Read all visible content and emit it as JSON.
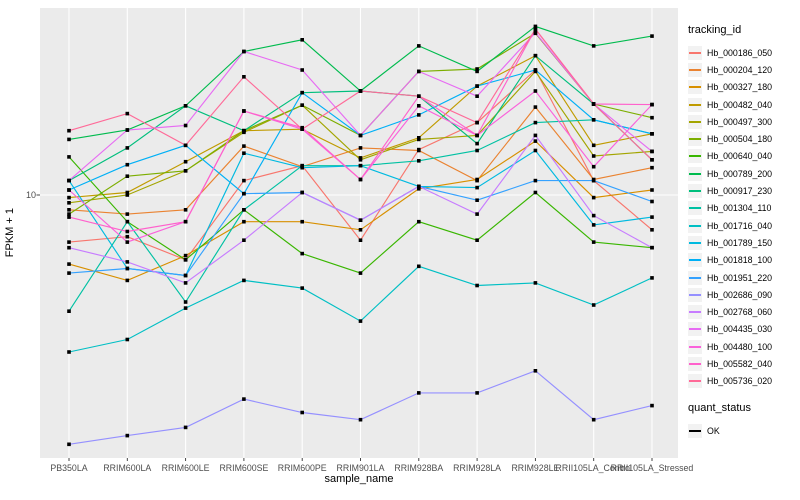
{
  "figure": {
    "y_tick_label": "10",
    "xlabel": "sample_name",
    "ylabel": "FPKM + 1"
  },
  "legend": {
    "title": "tracking_id",
    "quant_title": "quant_status",
    "quant_items": [
      "OK"
    ]
  },
  "chart_data": {
    "type": "line",
    "title": "",
    "xlabel": "sample_name",
    "ylabel": "FPKM + 1",
    "y_scale": "log10",
    "y_axis_ticks": [
      10
    ],
    "ylim": [
      1.26,
      43.5
    ],
    "grid": true,
    "legend_position": "right",
    "panel_bg": "#EBEBEB",
    "grid_color": "#FFFFFF",
    "axis_text_color": "#4D4D4D",
    "marker": {
      "shape": "square",
      "color": "#000000",
      "label": "OK"
    },
    "categories": [
      "PB350LA",
      "RRIM600LA",
      "RRIM600LE",
      "RRIM600SE",
      "RRIM600PE",
      "RRIM901LA",
      "RRIM928BA",
      "RRIM928LA",
      "RRIM928LE",
      "RRII105LA_Control",
      "RRII105LA_Stressed"
    ],
    "series": [
      {
        "name": "Hb_000186_050",
        "color": "#F8766D",
        "values": [
          6.9,
          7.2,
          6.0,
          11.2,
          12.6,
          7.0,
          14.3,
          17.7,
          26.8,
          11.2,
          7.6
        ]
      },
      {
        "name": "Hb_000204_120",
        "color": "#EA8331",
        "values": [
          8.9,
          8.6,
          8.9,
          14.7,
          12.5,
          14.5,
          14.2,
          11.2,
          20.0,
          11.3,
          12.4
        ]
      },
      {
        "name": "Hb_000327_180",
        "color": "#D89000",
        "values": [
          5.8,
          5.1,
          6.2,
          8.1,
          8.1,
          7.6,
          10.5,
          11.3,
          15.3,
          9.8,
          10.4
        ]
      },
      {
        "name": "Hb_000482_040",
        "color": "#C09B00",
        "values": [
          9.8,
          10.2,
          13.0,
          16.6,
          16.8,
          13.4,
          15.7,
          23.6,
          30.0,
          14.8,
          16.2
        ]
      },
      {
        "name": "Hb_000497_300",
        "color": "#A3A500",
        "values": [
          9.4,
          10.0,
          12.1,
          16.4,
          20.3,
          13.2,
          15.5,
          16.0,
          26.5,
          13.6,
          14.1
        ]
      },
      {
        "name": "Hb_000504_180",
        "color": "#7CAE00",
        "values": [
          8.6,
          11.6,
          12.1,
          16.6,
          20.3,
          16.0,
          26.5,
          27.0,
          35.8,
          20.5,
          18.4
        ]
      },
      {
        "name": "Hb_000640_040",
        "color": "#39B600",
        "values": [
          13.5,
          8.1,
          6.0,
          8.9,
          6.3,
          5.4,
          8.1,
          7.0,
          10.2,
          6.9,
          6.6
        ]
      },
      {
        "name": "Hb_000789_200",
        "color": "#00BB4E",
        "values": [
          15.5,
          16.7,
          20.2,
          31.0,
          34.0,
          22.7,
          32.4,
          26.5,
          37.8,
          32.4,
          35.0
        ]
      },
      {
        "name": "Hb_000917_230",
        "color": "#00BF7D",
        "values": [
          11.2,
          14.5,
          20.2,
          16.6,
          22.4,
          22.7,
          21.8,
          15.0,
          30.0,
          20.5,
          13.2
        ]
      },
      {
        "name": "Hb_001304_110",
        "color": "#00C1A3",
        "values": [
          4.0,
          8.1,
          4.3,
          8.9,
          12.6,
          12.6,
          13.1,
          14.2,
          17.7,
          18.1,
          16.2
        ]
      },
      {
        "name": "Hb_001716_040",
        "color": "#00BFC4",
        "values": [
          2.9,
          3.2,
          4.1,
          5.1,
          4.8,
          3.7,
          5.7,
          4.9,
          5.0,
          4.2,
          5.2
        ]
      },
      {
        "name": "Hb_001789_150",
        "color": "#00BAE0",
        "values": [
          11.2,
          5.6,
          5.3,
          13.9,
          12.4,
          12.6,
          10.7,
          10.6,
          14.2,
          7.9,
          8.4
        ]
      },
      {
        "name": "Hb_001818_100",
        "color": "#00B0F6",
        "values": [
          10.4,
          12.7,
          14.8,
          10.1,
          22.4,
          16.0,
          18.8,
          23.6,
          26.8,
          18.1,
          16.2
        ]
      },
      {
        "name": "Hb_001951_220",
        "color": "#35A2FF",
        "values": [
          5.4,
          5.6,
          5.3,
          10.1,
          10.2,
          8.2,
          10.7,
          9.6,
          11.2,
          11.2,
          9.5
        ]
      },
      {
        "name": "Hb_002686_090",
        "color": "#9590FF",
        "values": [
          1.4,
          1.5,
          1.6,
          2.0,
          1.8,
          1.7,
          2.1,
          2.1,
          2.5,
          1.7,
          1.9
        ]
      },
      {
        "name": "Hb_002768_060",
        "color": "#C77CFF",
        "values": [
          6.6,
          5.9,
          5.0,
          7.0,
          10.2,
          8.2,
          10.7,
          8.6,
          16.0,
          8.5,
          6.6
        ]
      },
      {
        "name": "Hb_004435_030",
        "color": "#E76BF3",
        "values": [
          11.2,
          16.7,
          17.3,
          31.0,
          26.8,
          16.0,
          26.5,
          21.8,
          36.0,
          20.5,
          14.1
        ]
      },
      {
        "name": "Hb_004480_100",
        "color": "#FA62DB",
        "values": [
          10.4,
          6.9,
          8.1,
          19.4,
          16.8,
          11.3,
          20.2,
          16.0,
          22.7,
          12.5,
          20.4
        ]
      },
      {
        "name": "Hb_005582_040",
        "color": "#FF61CC",
        "values": [
          8.4,
          7.5,
          8.1,
          19.4,
          17.0,
          11.3,
          21.8,
          16.0,
          37.0,
          20.5,
          20.4
        ]
      },
      {
        "name": "Hb_005736_020",
        "color": "#FF6A98",
        "values": [
          16.6,
          19.0,
          14.8,
          25.4,
          16.8,
          22.7,
          21.8,
          17.7,
          37.0,
          20.5,
          13.2
        ]
      }
    ]
  }
}
